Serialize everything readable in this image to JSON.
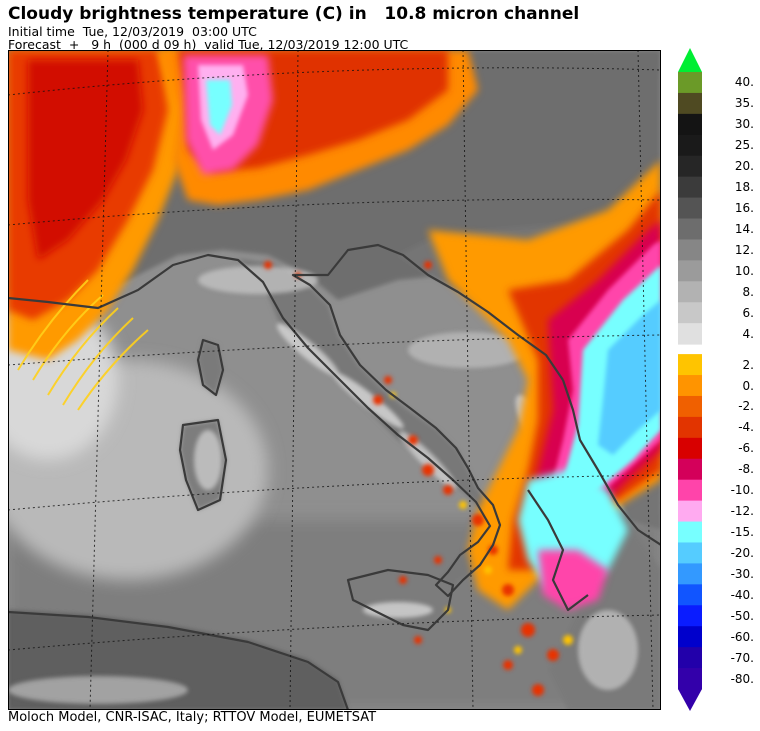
{
  "header": {
    "title": "Cloudy brightness temperature (C) in   10.8 micron channel",
    "initial_time": "Initial time  Tue, 12/03/2019  03:00 UTC",
    "forecast": "Forecast  +   9 h  (000 d 09 h)  valid Tue, 12/03/2019 12:00 UTC"
  },
  "footer": {
    "credits": "Moloch Model, CNR-ISAC, Italy; RTTOV Model, EUMETSAT"
  },
  "legend": {
    "top_arrow_color": "#00ee33",
    "bottom_arrow_color": "#3300aa",
    "entries": [
      {
        "label": "40.",
        "color": "#6b9a28"
      },
      {
        "label": "35.",
        "color": "#4f4a22"
      },
      {
        "label": "30.",
        "color": "#141414"
      },
      {
        "label": "25.",
        "color": "#1a1a1a"
      },
      {
        "label": "20.",
        "color": "#262626"
      },
      {
        "label": "18.",
        "color": "#3b3b3b"
      },
      {
        "label": "16.",
        "color": "#545454"
      },
      {
        "label": "14.",
        "color": "#6d6d6d"
      },
      {
        "label": "12.",
        "color": "#868686"
      },
      {
        "label": "10.",
        "color": "#9b9b9b"
      },
      {
        "label": "8.",
        "color": "#b2b2b2"
      },
      {
        "label": "6.",
        "color": "#c8c8c8"
      },
      {
        "label": "4.",
        "color": "#e0e0e0"
      },
      {
        "label": "2.",
        "color": "#ffc400"
      },
      {
        "label": "0.",
        "color": "#ff9400"
      },
      {
        "label": "-2.",
        "color": "#f06000"
      },
      {
        "label": "-4.",
        "color": "#e23400"
      },
      {
        "label": "-6.",
        "color": "#d80000"
      },
      {
        "label": "-8.",
        "color": "#d4005a"
      },
      {
        "label": "-10.",
        "color": "#ff44aa"
      },
      {
        "label": "-12.",
        "color": "#ffaaf0"
      },
      {
        "label": "-15.",
        "color": "#77ffff"
      },
      {
        "label": "-20.",
        "color": "#55ccff"
      },
      {
        "label": "-30.",
        "color": "#3399ff"
      },
      {
        "label": "-40.",
        "color": "#1155ff"
      },
      {
        "label": "-50.",
        "color": "#0a1cff"
      },
      {
        "label": "-60.",
        "color": "#0000cc"
      },
      {
        "label": "-70.",
        "color": "#2200aa"
      },
      {
        "label": "-80.",
        "color": "#3300aa"
      }
    ]
  }
}
